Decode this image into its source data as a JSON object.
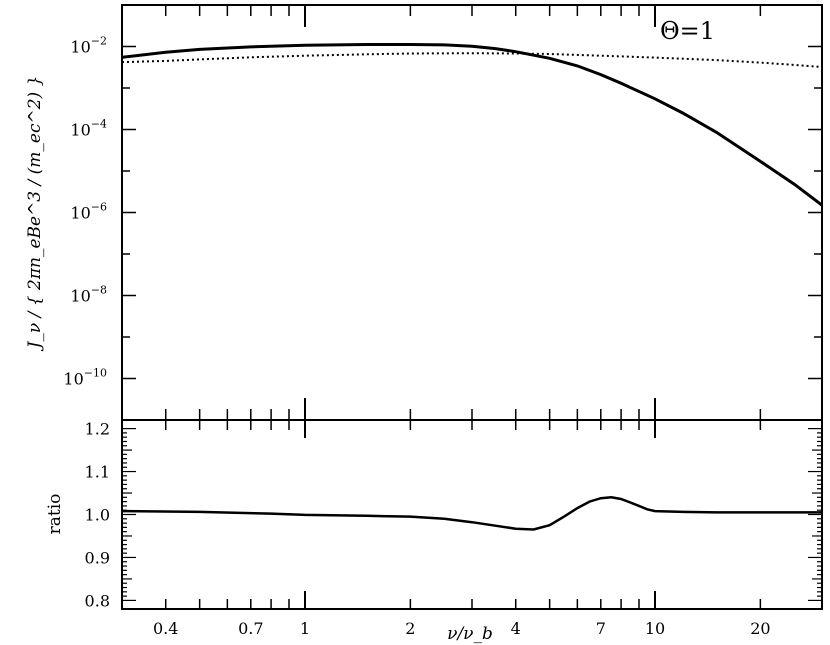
{
  "chart_data": [
    {
      "type": "line",
      "panel": "top",
      "xscale": "log",
      "yscale": "log",
      "xlim": [
        0.3,
        30
      ],
      "ylim": [
        1e-11,
        0.1
      ],
      "ylabel": "J_ν / { 2πn_eBe^3 / (m_ec^2) }",
      "annotation": "Θ=1",
      "yticks": [
        {
          "value": 0.01,
          "base": "10",
          "exp": "−2"
        },
        {
          "value": 0.0001,
          "base": "10",
          "exp": "−4"
        },
        {
          "value": 1e-06,
          "base": "10",
          "exp": "−6"
        },
        {
          "value": 1e-08,
          "base": "10",
          "exp": "−8"
        },
        {
          "value": 1e-10,
          "base": "10",
          "exp": "−10"
        }
      ],
      "series": [
        {
          "style": "solid",
          "x": [
            0.3,
            0.4,
            0.5,
            0.7,
            1,
            1.5,
            2,
            2.5,
            3,
            3.5,
            4,
            5,
            6,
            7,
            8,
            10,
            12,
            15,
            20,
            25,
            30
          ],
          "y": [
            0.0055,
            0.0073,
            0.0085,
            0.0098,
            0.0107,
            0.0112,
            0.0112,
            0.0109,
            0.0101,
            0.0089,
            0.0075,
            0.0052,
            0.0034,
            0.0021,
            0.0013,
            0.00055,
            0.00025,
            8.5e-05,
            1.7e-05,
            4.8e-06,
            1.5e-06
          ]
        },
        {
          "style": "dotted",
          "x": [
            0.3,
            0.4,
            0.5,
            0.7,
            1,
            1.5,
            2,
            3,
            4,
            5,
            7,
            10,
            15,
            20,
            25,
            30
          ],
          "y": [
            0.0042,
            0.0045,
            0.0049,
            0.0055,
            0.006,
            0.0065,
            0.0068,
            0.0069,
            0.0068,
            0.0066,
            0.006,
            0.0054,
            0.0047,
            0.0041,
            0.0036,
            0.0032
          ]
        }
      ]
    },
    {
      "type": "line",
      "panel": "bottom",
      "xscale": "log",
      "xlim": [
        0.3,
        30
      ],
      "ylim": [
        0.78,
        1.22
      ],
      "xlabel": "ν/ν_b",
      "ylabel": "ratio",
      "xticklabels": [
        "0.4",
        "0.7",
        "1",
        "2",
        "4",
        "7",
        "10",
        "20"
      ],
      "yticklabels": [
        "1.2",
        "1.1",
        "1.0",
        "0.9",
        "0.8"
      ],
      "series": [
        {
          "style": "solid",
          "x": [
            0.3,
            0.5,
            0.8,
            1,
            1.5,
            2,
            2.5,
            3,
            3.5,
            4,
            4.5,
            5,
            5.5,
            6,
            6.5,
            7,
            7.5,
            8,
            8.5,
            9,
            9.5,
            10,
            12,
            15,
            20,
            25,
            30
          ],
          "y": [
            1.008,
            1.006,
            1.002,
            0.999,
            0.997,
            0.995,
            0.99,
            0.982,
            0.974,
            0.967,
            0.965,
            0.975,
            0.995,
            1.015,
            1.03,
            1.038,
            1.04,
            1.036,
            1.028,
            1.02,
            1.012,
            1.008,
            1.006,
            1.005,
            1.005,
            1.005,
            1.005
          ]
        }
      ]
    }
  ]
}
